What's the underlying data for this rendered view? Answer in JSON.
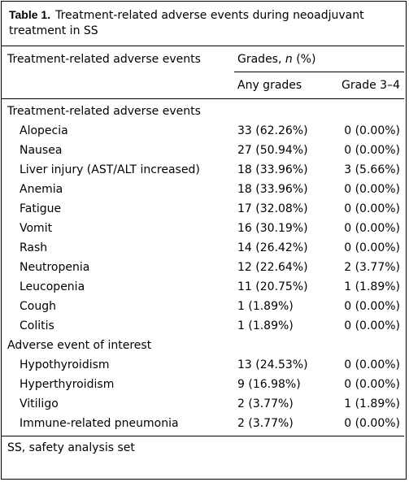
{
  "caption": {
    "label": "Table 1.",
    "text": "Treatment-related adverse events during neoadjuvant treatment in SS"
  },
  "header": {
    "col1": "Treatment-related adverse events",
    "grades_prefix": "Grades, ",
    "grades_n": "n",
    "grades_suffix": " (%)",
    "any": "Any grades",
    "grade34": "Grade 3–4"
  },
  "sections": [
    {
      "title": "Treatment-related adverse events",
      "rows": [
        {
          "event": "Alopecia",
          "any": "33 (62.26%)",
          "g34": "0 (0.00%)"
        },
        {
          "event": "Nausea",
          "any": "27 (50.94%)",
          "g34": "0 (0.00%)"
        },
        {
          "event": "Liver injury (AST/ALT increased)",
          "any": "18 (33.96%)",
          "g34": "3 (5.66%)"
        },
        {
          "event": "Anemia",
          "any": "18 (33.96%)",
          "g34": "0 (0.00%)"
        },
        {
          "event": "Fatigue",
          "any": "17 (32.08%)",
          "g34": "0 (0.00%)"
        },
        {
          "event": "Vomit",
          "any": "16 (30.19%)",
          "g34": "0 (0.00%)"
        },
        {
          "event": "Rash",
          "any": "14 (26.42%)",
          "g34": "0 (0.00%)"
        },
        {
          "event": "Neutropenia",
          "any": "12 (22.64%)",
          "g34": "2 (3.77%)"
        },
        {
          "event": "Leucopenia",
          "any": "11 (20.75%)",
          "g34": "1 (1.89%)"
        },
        {
          "event": "Cough",
          "any": "1 (1.89%)",
          "g34": "0 (0.00%)"
        },
        {
          "event": "Colitis",
          "any": "1 (1.89%)",
          "g34": "0 (0.00%)"
        }
      ]
    },
    {
      "title": "Adverse event of interest",
      "rows": [
        {
          "event": "Hypothyroidism",
          "any": "13 (24.53%)",
          "g34": "0 (0.00%)"
        },
        {
          "event": "Hyperthyroidism",
          "any": "9 (16.98%)",
          "g34": "0 (0.00%)"
        },
        {
          "event": "Vitiligo",
          "any": "2 (3.77%)",
          "g34": "1 (1.89%)"
        },
        {
          "event": "Immune-related pneumonia",
          "any": "2 (3.77%)",
          "g34": "0 (0.00%)"
        }
      ]
    }
  ],
  "footnote": "SS, safety analysis set"
}
